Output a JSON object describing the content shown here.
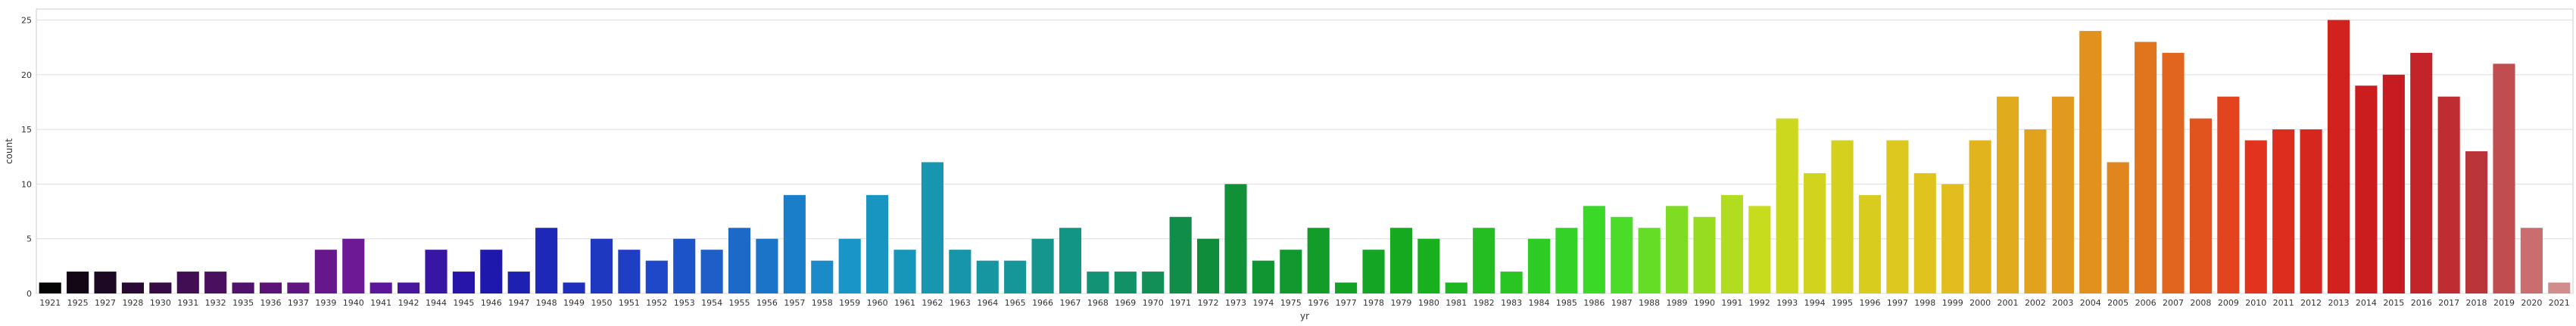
{
  "chart_data": {
    "type": "bar",
    "xlabel": "yr",
    "ylabel": "count",
    "ylim": [
      0,
      26
    ],
    "yticks": [
      0,
      5,
      10,
      15,
      20,
      25
    ],
    "grid": "horizontal",
    "categories": [
      "1921",
      "1925",
      "1927",
      "1928",
      "1930",
      "1931",
      "1932",
      "1935",
      "1936",
      "1937",
      "1939",
      "1940",
      "1941",
      "1942",
      "1944",
      "1945",
      "1946",
      "1947",
      "1948",
      "1949",
      "1950",
      "1951",
      "1952",
      "1953",
      "1954",
      "1955",
      "1956",
      "1957",
      "1958",
      "1959",
      "1960",
      "1961",
      "1962",
      "1963",
      "1964",
      "1965",
      "1966",
      "1967",
      "1968",
      "1969",
      "1970",
      "1971",
      "1972",
      "1973",
      "1974",
      "1975",
      "1976",
      "1977",
      "1978",
      "1979",
      "1980",
      "1981",
      "1982",
      "1983",
      "1984",
      "1985",
      "1986",
      "1987",
      "1988",
      "1989",
      "1990",
      "1991",
      "1992",
      "1993",
      "1994",
      "1995",
      "1996",
      "1997",
      "1998",
      "1999",
      "2000",
      "2001",
      "2002",
      "2003",
      "2004",
      "2005",
      "2006",
      "2007",
      "2008",
      "2009",
      "2010",
      "2011",
      "2012",
      "2013",
      "2014",
      "2015",
      "2016",
      "2017",
      "2018",
      "2019",
      "2020",
      "2021"
    ],
    "values": [
      1,
      2,
      2,
      1,
      1,
      2,
      2,
      1,
      1,
      1,
      4,
      5,
      1,
      1,
      4,
      2,
      4,
      2,
      6,
      1,
      5,
      4,
      3,
      5,
      4,
      6,
      5,
      9,
      3,
      5,
      9,
      4,
      12,
      4,
      3,
      3,
      5,
      6,
      2,
      2,
      2,
      7,
      5,
      10,
      3,
      4,
      6,
      1,
      4,
      6,
      5,
      1,
      6,
      2,
      5,
      6,
      8,
      7,
      6,
      8,
      7,
      9,
      8,
      16,
      11,
      14,
      9,
      14,
      11,
      10,
      14,
      18,
      15,
      18,
      24,
      12,
      23,
      22,
      16,
      18,
      14,
      15,
      15,
      25,
      19,
      20,
      22,
      18,
      13,
      21,
      6,
      1
    ],
    "colors": {
      "background": "#ffffff",
      "grid": "#dddddd",
      "axis": "#cccccc",
      "text": "#333333",
      "palette": "gist_rainbow_r-like: black → purple → blue → cyan → green → yellow → orange → red → pink"
    }
  }
}
